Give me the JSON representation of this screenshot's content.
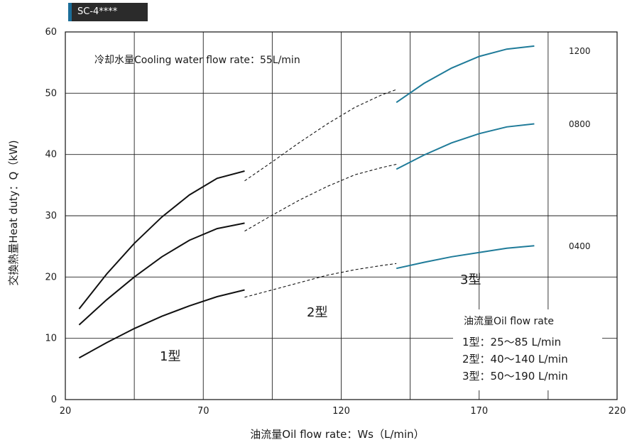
{
  "model_tag": "SC-4****",
  "chart_data": {
    "type": "line",
    "xlabel": "油流量Oil flow rate：Ws（L/min）",
    "ylabel": "交換熱量Heat duty：Q（kW)",
    "xlim": [
      20,
      220
    ],
    "ylim": [
      0,
      60
    ],
    "x_ticks": [
      20,
      70,
      120,
      170,
      220
    ],
    "y_ticks": [
      0,
      10,
      20,
      30,
      40,
      50,
      60
    ],
    "grid": true,
    "annotation": "冷却水量Cooling water flow rate：55L/min",
    "colors": {
      "type1": "#111111",
      "type2": "#111111",
      "type3": "#1f7b99"
    },
    "series": [
      {
        "name": "1200",
        "type1": [
          [
            25,
            14.8
          ],
          [
            35,
            20.5
          ],
          [
            45,
            25.5
          ],
          [
            55,
            29.8
          ],
          [
            65,
            33.4
          ],
          [
            75,
            36.1
          ],
          [
            85,
            37.3
          ]
        ],
        "type2": [
          [
            85,
            35.7
          ],
          [
            95,
            38.8
          ],
          [
            105,
            42.0
          ],
          [
            115,
            45.0
          ],
          [
            125,
            47.7
          ],
          [
            135,
            49.8
          ],
          [
            140,
            50.6
          ]
        ],
        "type3": [
          [
            140,
            48.5
          ],
          [
            150,
            51.6
          ],
          [
            160,
            54.1
          ],
          [
            170,
            56.0
          ],
          [
            180,
            57.2
          ],
          [
            190,
            57.7
          ]
        ]
      },
      {
        "name": "0800",
        "type1": [
          [
            25,
            12.2
          ],
          [
            35,
            16.3
          ],
          [
            45,
            20.0
          ],
          [
            55,
            23.3
          ],
          [
            65,
            26.0
          ],
          [
            75,
            27.9
          ],
          [
            85,
            28.8
          ]
        ],
        "type2": [
          [
            85,
            27.5
          ],
          [
            95,
            30.1
          ],
          [
            105,
            32.6
          ],
          [
            115,
            34.8
          ],
          [
            125,
            36.7
          ],
          [
            135,
            37.9
          ],
          [
            140,
            38.4
          ]
        ],
        "type3": [
          [
            140,
            37.6
          ],
          [
            150,
            39.9
          ],
          [
            160,
            41.9
          ],
          [
            170,
            43.4
          ],
          [
            180,
            44.5
          ],
          [
            190,
            45.0
          ]
        ]
      },
      {
        "name": "0400",
        "type1": [
          [
            25,
            6.8
          ],
          [
            35,
            9.3
          ],
          [
            45,
            11.6
          ],
          [
            55,
            13.6
          ],
          [
            65,
            15.3
          ],
          [
            75,
            16.8
          ],
          [
            85,
            17.9
          ]
        ],
        "type2": [
          [
            85,
            16.7
          ],
          [
            95,
            17.9
          ],
          [
            105,
            19.1
          ],
          [
            115,
            20.3
          ],
          [
            125,
            21.2
          ],
          [
            135,
            21.9
          ],
          [
            140,
            22.2
          ]
        ],
        "type3": [
          [
            140,
            21.4
          ],
          [
            150,
            22.4
          ],
          [
            160,
            23.3
          ],
          [
            170,
            24.0
          ],
          [
            180,
            24.7
          ],
          [
            190,
            25.1
          ]
        ]
      }
    ],
    "region_labels": {
      "type1": "1型",
      "type2": "2型",
      "type3": "3型"
    },
    "flow_legend": {
      "title": "油流量Oil flow rate",
      "lines": [
        "1型：25～85 L/min",
        "2型：40～140 L/min",
        "3型：50～190 L/min"
      ]
    }
  }
}
